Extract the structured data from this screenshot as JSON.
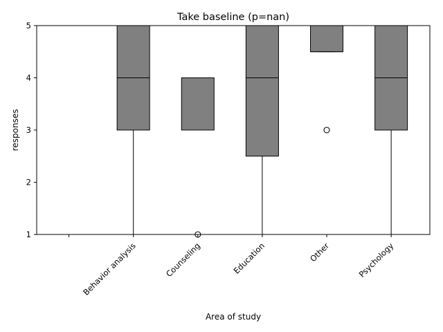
{
  "chart_data": {
    "type": "box",
    "title": "Take baseline (p=nan)",
    "xlabel": "Area of study",
    "ylabel": "responses",
    "ylim": [
      1,
      5
    ],
    "yticks": [
      1,
      2,
      3,
      4,
      5
    ],
    "categories": [
      "",
      "Behavior analysis",
      "Counseling",
      "Education",
      "Other",
      "Psychology"
    ],
    "boxes": [
      null,
      {
        "whisker_low": 1,
        "q1": 3,
        "median": 4,
        "q3": 5,
        "whisker_high": 5,
        "fliers": []
      },
      {
        "whisker_low": 3,
        "q1": 3,
        "median": 3,
        "q3": 4,
        "whisker_high": 4,
        "fliers": [
          1
        ]
      },
      {
        "whisker_low": 1,
        "q1": 2.5,
        "median": 4,
        "q3": 5,
        "whisker_high": 5,
        "fliers": []
      },
      {
        "whisker_low": 4.5,
        "q1": 4.5,
        "median": 4.5,
        "q3": 5,
        "whisker_high": 5,
        "fliers": [
          3
        ]
      },
      {
        "whisker_low": 1,
        "q1": 3,
        "median": 4,
        "q3": 5,
        "whisker_high": 5,
        "fliers": []
      }
    ],
    "box_color": "#808080",
    "grid": false,
    "legend": "none"
  }
}
